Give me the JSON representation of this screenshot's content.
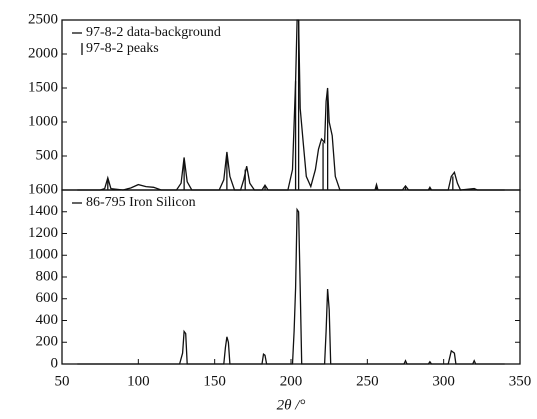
{
  "chart_data": [
    {
      "type": "line",
      "legend": "upper left",
      "xlim": [
        50,
        350
      ],
      "ylim": [
        0,
        2500
      ],
      "yticks": [
        500,
        1000,
        1500,
        2000,
        2500
      ],
      "series": [
        {
          "name": "97-8-2 data-background",
          "style": "line",
          "color": "#111111",
          "x": [
            60,
            75,
            78,
            80,
            82,
            90,
            95,
            100,
            105,
            110,
            115,
            125,
            128,
            130,
            132,
            135,
            153,
            156,
            158,
            160,
            163,
            167,
            169,
            171,
            173,
            176,
            181,
            183,
            185,
            198,
            201,
            203,
            204,
            205,
            206,
            208,
            210,
            213,
            216,
            218,
            220,
            222,
            223,
            224,
            225,
            227,
            229,
            232,
            255,
            256,
            257,
            273,
            275,
            277,
            290,
            291,
            292,
            303,
            305,
            307,
            309,
            311,
            320,
            322,
            340
          ],
          "values": [
            0,
            0,
            20,
            180,
            20,
            0,
            30,
            80,
            50,
            40,
            0,
            0,
            100,
            480,
            120,
            0,
            0,
            150,
            560,
            200,
            0,
            0,
            150,
            350,
            100,
            0,
            0,
            70,
            0,
            0,
            300,
            1600,
            2500,
            2500,
            1200,
            700,
            200,
            50,
            300,
            600,
            750,
            700,
            1300,
            1500,
            1000,
            800,
            200,
            0,
            0,
            80,
            0,
            0,
            60,
            0,
            0,
            40,
            0,
            0,
            200,
            260,
            100,
            0,
            20,
            0,
            0
          ]
        },
        {
          "name": "97-8-2 peaks",
          "style": "stick",
          "color": "#111111",
          "x": [
            80,
            130,
            158,
            170,
            183,
            203,
            205,
            221,
            224,
            256,
            275,
            291,
            306
          ],
          "values": [
            150,
            400,
            500,
            300,
            60,
            1600,
            2500,
            700,
            1450,
            70,
            50,
            30,
            200
          ]
        }
      ]
    },
    {
      "type": "line",
      "legend": "upper left",
      "xlim": [
        50,
        350
      ],
      "xticks": [
        50,
        100,
        150,
        200,
        250,
        300,
        350
      ],
      "xlabel": "2θ /°",
      "ylim": [
        0,
        1600
      ],
      "yticks": [
        0,
        200,
        400,
        600,
        800,
        1000,
        1200,
        1400,
        1600
      ],
      "series": [
        {
          "name": "86-795 Iron Silicon",
          "style": "line",
          "color": "#111111",
          "x": [
            60,
            127,
            129,
            130,
            131,
            132,
            156,
            157,
            158,
            159,
            160,
            181,
            182,
            183,
            184,
            201,
            202,
            203,
            204,
            205,
            206,
            207,
            222,
            223,
            224,
            225,
            226,
            274,
            275,
            276,
            290,
            291,
            292,
            303,
            305,
            307,
            308,
            319,
            320,
            321,
            340
          ],
          "values": [
            0,
            0,
            100,
            300,
            280,
            0,
            0,
            150,
            250,
            200,
            0,
            0,
            90,
            80,
            0,
            0,
            300,
            700,
            1420,
            1400,
            700,
            0,
            0,
            300,
            690,
            500,
            0,
            0,
            30,
            0,
            0,
            20,
            0,
            0,
            120,
            100,
            0,
            0,
            30,
            0,
            0
          ]
        }
      ]
    }
  ]
}
